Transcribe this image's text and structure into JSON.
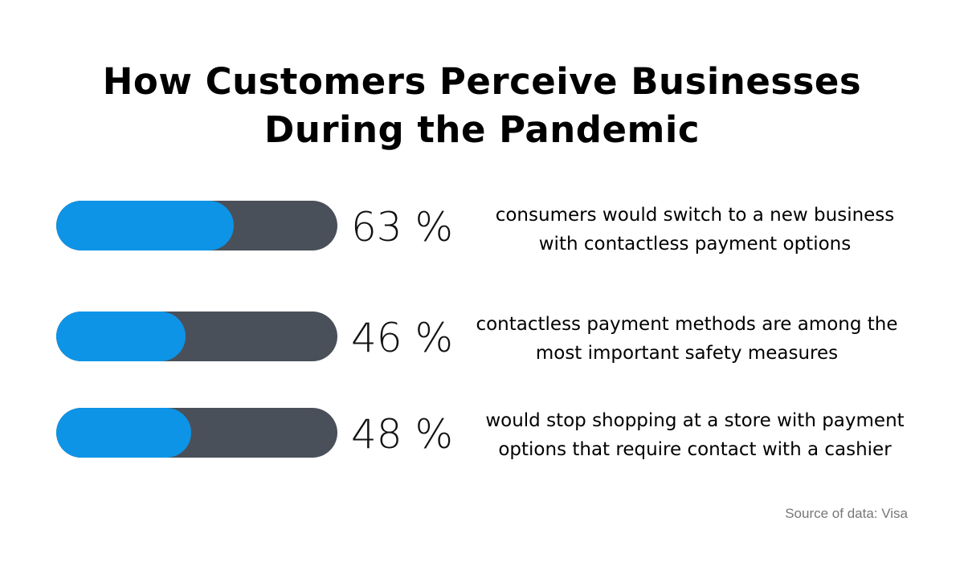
{
  "title_line1": "How Customers Perceive Businesses",
  "title_line2": "During the Pandemic",
  "chart_data": {
    "type": "bar",
    "orientation": "horizontal",
    "title": "How Customers Perceive Businesses During the Pandemic",
    "unit": "%",
    "xlim": [
      0,
      100
    ],
    "colors": {
      "fill": "#0d94e7",
      "track": "#4a5059"
    },
    "items": [
      {
        "value": 63,
        "label": "63 %",
        "description": "consumers would switch to a new business with contactless payment options"
      },
      {
        "value": 46,
        "label": "46 %",
        "description": "contactless payment methods are among the most important safety measures"
      },
      {
        "value": 48,
        "label": "48 %",
        "description": "would stop shopping at a store with payment options that require contact with a cashier"
      }
    ]
  },
  "source": "Source of data: Visa"
}
